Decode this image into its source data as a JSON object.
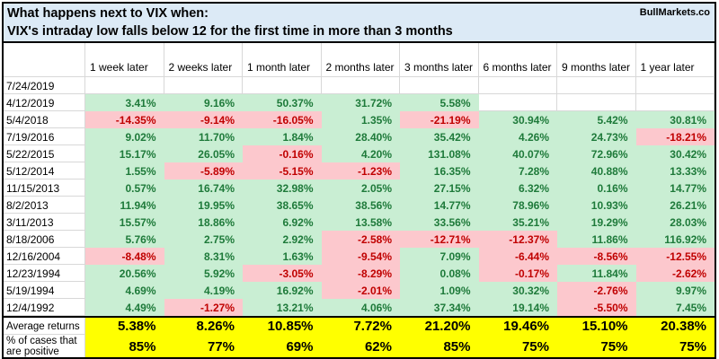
{
  "header": {
    "title_line1": "What happens next to VIX when:",
    "title_line2": "VIX's intraday low falls below 12 for the first time in more than 3 months",
    "brand": "BullMarkets.co"
  },
  "table": {
    "columns": [
      "1 week later",
      "2 weeks later",
      "1 month later",
      "2 months later",
      "3 months later",
      "6 months later",
      "9 months later",
      "1 year later"
    ],
    "rows": [
      {
        "date": "7/24/2019",
        "values": [
          "",
          "",
          "",
          "",
          "",
          "",
          "",
          ""
        ]
      },
      {
        "date": "4/12/2019",
        "values": [
          "3.41%",
          "9.16%",
          "50.37%",
          "31.72%",
          "5.58%",
          "",
          "",
          ""
        ]
      },
      {
        "date": "5/4/2018",
        "values": [
          "-14.35%",
          "-9.14%",
          "-16.05%",
          "1.35%",
          "-21.19%",
          "30.94%",
          "5.42%",
          "30.81%"
        ]
      },
      {
        "date": "7/19/2016",
        "values": [
          "9.02%",
          "11.70%",
          "1.84%",
          "28.40%",
          "35.42%",
          "4.26%",
          "24.73%",
          "-18.21%"
        ]
      },
      {
        "date": "5/22/2015",
        "values": [
          "15.17%",
          "26.05%",
          "-0.16%",
          "4.20%",
          "131.08%",
          "40.07%",
          "72.96%",
          "30.42%"
        ]
      },
      {
        "date": "5/12/2014",
        "values": [
          "1.55%",
          "-5.89%",
          "-5.15%",
          "-1.23%",
          "16.35%",
          "7.28%",
          "40.88%",
          "13.33%"
        ]
      },
      {
        "date": "11/15/2013",
        "values": [
          "0.57%",
          "16.74%",
          "32.98%",
          "2.05%",
          "27.15%",
          "6.32%",
          "0.16%",
          "14.77%"
        ]
      },
      {
        "date": "8/2/2013",
        "values": [
          "11.94%",
          "19.95%",
          "38.65%",
          "38.56%",
          "14.77%",
          "78.96%",
          "10.93%",
          "26.21%"
        ]
      },
      {
        "date": "3/11/2013",
        "values": [
          "15.57%",
          "18.86%",
          "6.92%",
          "13.58%",
          "33.56%",
          "35.21%",
          "19.29%",
          "28.03%"
        ]
      },
      {
        "date": "8/18/2006",
        "values": [
          "5.76%",
          "2.75%",
          "2.92%",
          "-2.58%",
          "-12.71%",
          "-12.37%",
          "11.86%",
          "116.92%"
        ]
      },
      {
        "date": "12/16/2004",
        "values": [
          "-8.48%",
          "8.31%",
          "1.63%",
          "-9.54%",
          "7.09%",
          "-6.44%",
          "-8.56%",
          "-12.55%"
        ]
      },
      {
        "date": "12/23/1994",
        "values": [
          "20.56%",
          "5.92%",
          "-3.05%",
          "-8.29%",
          "0.08%",
          "-0.17%",
          "11.84%",
          "-2.62%"
        ]
      },
      {
        "date": "5/19/1994",
        "values": [
          "4.69%",
          "4.19%",
          "16.92%",
          "-2.01%",
          "1.09%",
          "30.32%",
          "-2.76%",
          "9.97%"
        ]
      },
      {
        "date": "12/4/1992",
        "values": [
          "4.49%",
          "-1.27%",
          "13.21%",
          "4.06%",
          "37.34%",
          "19.14%",
          "-5.50%",
          "7.45%"
        ]
      }
    ],
    "summary": {
      "average_label": "Average returns",
      "average_values": [
        "5.38%",
        "8.26%",
        "10.85%",
        "7.72%",
        "21.20%",
        "19.46%",
        "15.10%",
        "20.38%"
      ],
      "positive_label_line1": "% of cases that",
      "positive_label_line2": "are positive",
      "positive_values": [
        "85%",
        "77%",
        "69%",
        "62%",
        "85%",
        "75%",
        "75%",
        "75%"
      ]
    }
  },
  "colors": {
    "title_bg": "#dceaf6",
    "positive_bg": "#c9eed3",
    "positive_text": "#1e7a3a",
    "negative_bg": "#fcc8cd",
    "negative_text": "#c00000",
    "summary_bg": "#ffff00"
  }
}
